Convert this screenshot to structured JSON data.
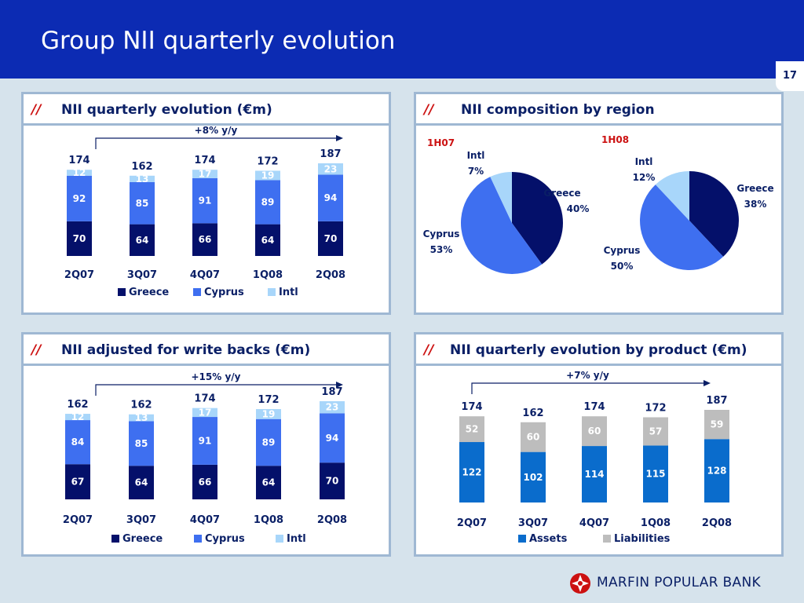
{
  "title": "Group NII quarterly evolution",
  "page_number": "17",
  "logo": {
    "text": "MARFIN POPULAR BANK"
  },
  "colors": {
    "greece": "#04106a",
    "cyprus": "#3e6ff0",
    "intl": "#a8d6fa",
    "assets": "#0a6ccc",
    "liabilities": "#bdbdbd",
    "header": "#0c2bb3",
    "slash": "#cc1111"
  },
  "panels": {
    "p1": {
      "slashes": "//",
      "title": "NII quarterly evolution (€m)"
    },
    "p2": {
      "slashes": "//",
      "title": "NII composition by region"
    },
    "p3": {
      "slashes": "//",
      "title": "NII adjusted for write backs (€m)"
    },
    "p4": {
      "slashes": "//",
      "title": "NII quarterly evolution by product (€m)"
    }
  },
  "chart_data": [
    {
      "type": "bar",
      "title": "NII quarterly evolution (€m)",
      "growth_label": "+8% y/y",
      "categories": [
        "2Q07",
        "3Q07",
        "4Q07",
        "1Q08",
        "2Q08"
      ],
      "totals": [
        174,
        162,
        174,
        172,
        187
      ],
      "series": [
        {
          "name": "Greece",
          "values": [
            70,
            64,
            66,
            64,
            70
          ]
        },
        {
          "name": "Cyprus",
          "values": [
            92,
            85,
            91,
            89,
            94
          ]
        },
        {
          "name": "Intl",
          "values": [
            12,
            13,
            17,
            19,
            23
          ]
        }
      ],
      "stacked": true,
      "legend": "bottom"
    },
    {
      "type": "pie",
      "title": "NII composition by region",
      "pies": [
        {
          "label": "1H07",
          "slices": [
            {
              "name": "Greece",
              "value": 40,
              "label": "40%"
            },
            {
              "name": "Cyprus",
              "value": 53,
              "label": "53%"
            },
            {
              "name": "Intl",
              "value": 7,
              "label": "7%"
            }
          ]
        },
        {
          "label": "1H08",
          "slices": [
            {
              "name": "Greece",
              "value": 38,
              "label": "38%"
            },
            {
              "name": "Cyprus",
              "value": 50,
              "label": "50%"
            },
            {
              "name": "Intl",
              "value": 12,
              "label": "12%"
            }
          ]
        }
      ]
    },
    {
      "type": "bar",
      "title": "NII adjusted for write backs (€m)",
      "growth_label": "+15% y/y",
      "categories": [
        "2Q07",
        "3Q07",
        "4Q07",
        "1Q08",
        "2Q08"
      ],
      "totals": [
        162,
        162,
        174,
        172,
        187
      ],
      "series": [
        {
          "name": "Greece",
          "values": [
            67,
            64,
            66,
            64,
            70
          ]
        },
        {
          "name": "Cyprus",
          "values": [
            84,
            85,
            91,
            89,
            94
          ]
        },
        {
          "name": "Intl",
          "values": [
            12,
            13,
            17,
            19,
            23
          ]
        }
      ],
      "stacked": true,
      "legend": "bottom"
    },
    {
      "type": "bar",
      "title": "NII quarterly evolution by product (€m)",
      "growth_label": "+7% y/y",
      "categories": [
        "2Q07",
        "3Q07",
        "4Q07",
        "1Q08",
        "2Q08"
      ],
      "totals": [
        174,
        162,
        174,
        172,
        187
      ],
      "series": [
        {
          "name": "Assets",
          "values": [
            122,
            102,
            114,
            115,
            128
          ]
        },
        {
          "name": "Liabilities",
          "values": [
            52,
            60,
            60,
            57,
            59
          ]
        }
      ],
      "stacked": true,
      "legend": "bottom"
    }
  ]
}
